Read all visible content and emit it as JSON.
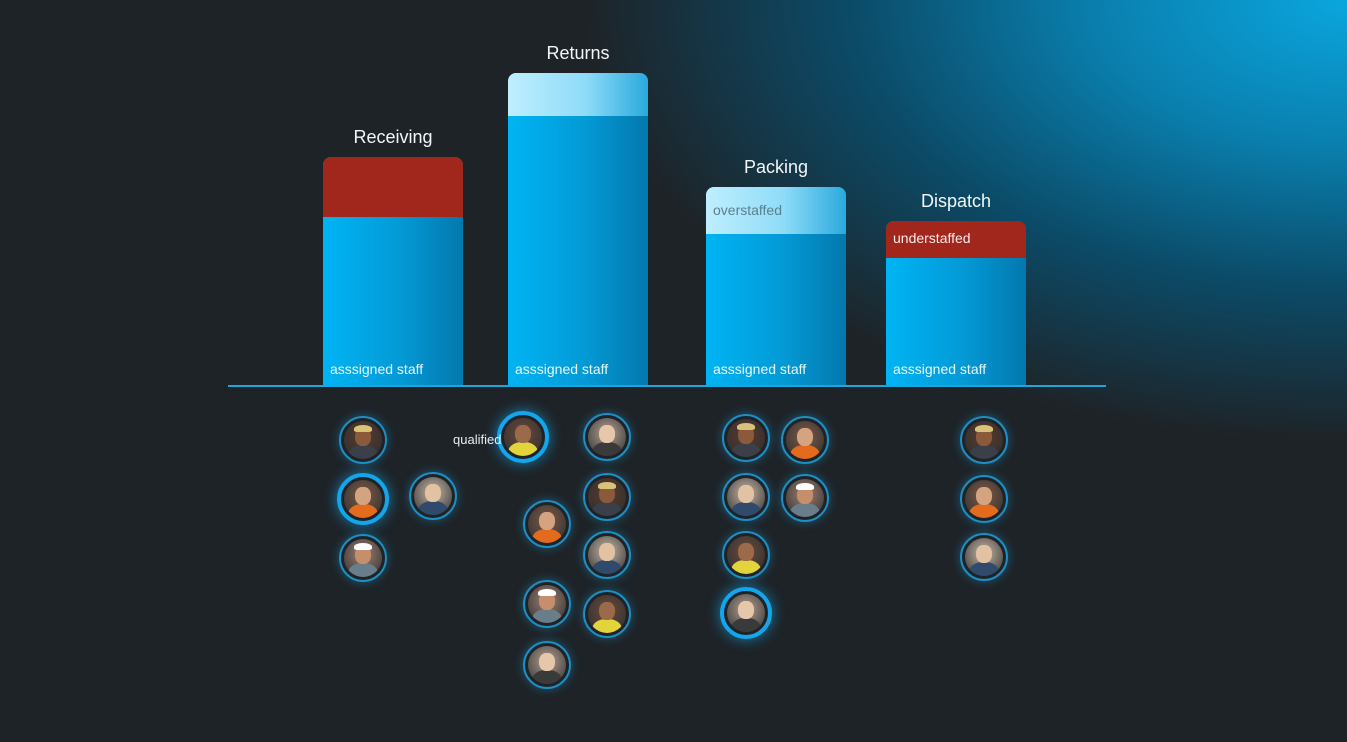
{
  "chart_data": {
    "type": "bar",
    "title": "",
    "xlabel": "",
    "ylabel": "",
    "ylim": [
      0,
      10
    ],
    "categories": [
      "Receiving",
      "Returns",
      "Packing",
      "Dispatch"
    ],
    "assigned_label": "asssigned staff",
    "series": [
      {
        "values": [
          5,
          8,
          4.5,
          3.8
        ],
        "color": "#039ad6"
      },
      {
        "values": [
          1.8,
          1.3,
          1.4,
          1.1
        ],
        "status": [
          "understaffed",
          "overstaffed",
          "overstaffed",
          "understaffed"
        ],
        "status_labels": [
          "",
          "",
          "overstaffed",
          "understaffed"
        ]
      }
    ]
  },
  "qualified_label": "qualified",
  "colors": {
    "understaffed": "#a1271d",
    "overstaffed": "#bfeeff",
    "assigned": "#039ad6",
    "baseline": "#1ea6dc"
  },
  "staff_groups": [
    {
      "department": "Receiving",
      "count": 4,
      "highlighted": [
        1
      ]
    },
    {
      "department": "Returns",
      "count": 8,
      "highlighted": [
        0
      ]
    },
    {
      "department": "Packing",
      "count": 6,
      "highlighted": [
        5
      ]
    },
    {
      "department": "Dispatch",
      "count": 3,
      "highlighted": []
    }
  ]
}
